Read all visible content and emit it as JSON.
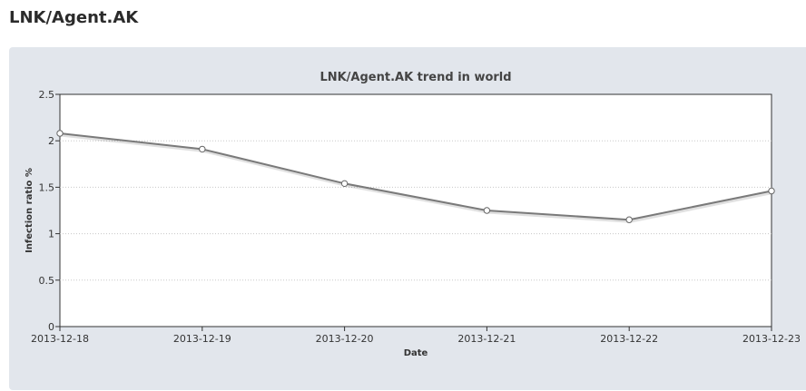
{
  "page": {
    "title": "LNK/Agent.AK"
  },
  "colors": {
    "panel_bg": "#e2e6ec",
    "plot_bg": "#ffffff",
    "line": "#7a7a7a",
    "grid": "#c8c8c8"
  },
  "chart_data": {
    "type": "line",
    "title": "LNK/Agent.AK trend in world",
    "xlabel": "Date",
    "ylabel": "Infection ratio %",
    "categories": [
      "2013-12-18",
      "2013-12-19",
      "2013-12-20",
      "2013-12-21",
      "2013-12-22",
      "2013-12-23"
    ],
    "series": [
      {
        "values": [
          2.08,
          1.91,
          1.54,
          1.25,
          1.15,
          1.46
        ]
      }
    ],
    "ylim": [
      0,
      2.5
    ],
    "yticks": [
      "0",
      "0.5",
      "1",
      "1.5",
      "2",
      "2.5"
    ],
    "grid": true,
    "legend": "none"
  }
}
